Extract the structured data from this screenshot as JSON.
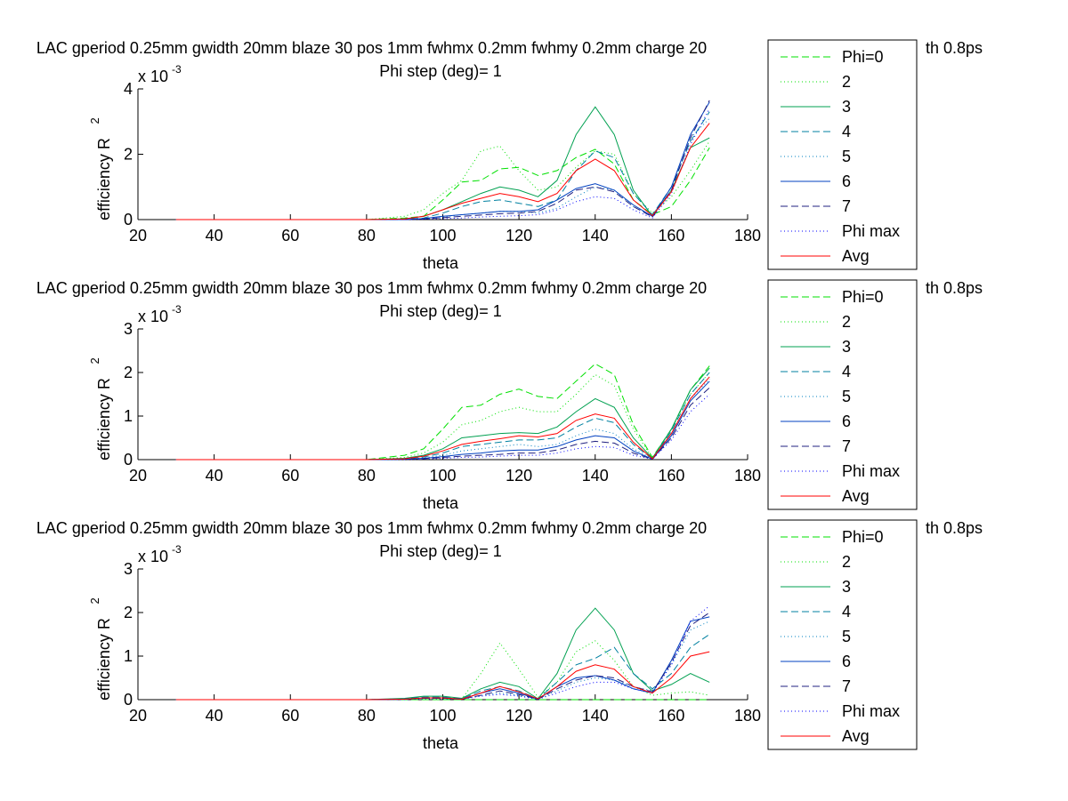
{
  "figure": {
    "background": "#ffffff"
  },
  "legend": {
    "entries": [
      {
        "label": "Phi=0",
        "color": "#00e000",
        "dash": "dashed"
      },
      {
        "label": "2",
        "color": "#00e000",
        "dash": "dotted"
      },
      {
        "label": "3",
        "color": "#00a050",
        "dash": "solid"
      },
      {
        "label": "4",
        "color": "#0080a0",
        "dash": "dashed"
      },
      {
        "label": "5",
        "color": "#0080c0",
        "dash": "dotted"
      },
      {
        "label": "6",
        "color": "#0040c0",
        "dash": "solid"
      },
      {
        "label": "7",
        "color": "#202080",
        "dash": "dashed"
      },
      {
        "label": "Phi max",
        "color": "#0000ff",
        "dash": "dotted"
      },
      {
        "label": "Avg",
        "color": "#ff0000",
        "dash": "solid"
      }
    ]
  },
  "chart_data": [
    {
      "type": "line",
      "title": "LAC gperiod 0.25mm gwidth 20mm blaze 30 pos 1mm fwhmx 0.2mm fwhmy 0.2mm charge 20",
      "title_tail": "th 0.8ps",
      "subtitle": "Phi step (deg)= 1",
      "xlabel": "theta",
      "ylabel": "efficiency R",
      "ylabel_sup": "2",
      "y_multiplier": "x 10",
      "y_multiplier_exp": "-3",
      "xlim": [
        20,
        180
      ],
      "ylim": [
        0,
        4
      ],
      "xticks": [
        20,
        40,
        60,
        80,
        100,
        120,
        140,
        160,
        180
      ],
      "yticks": [
        0,
        2,
        4
      ],
      "grid": false,
      "legend_position": "right",
      "x": [
        30,
        80,
        90,
        95,
        100,
        105,
        110,
        115,
        120,
        125,
        130,
        135,
        140,
        145,
        150,
        155,
        160,
        165,
        170
      ],
      "series": [
        {
          "name": "Phi=0",
          "values": [
            0,
            0,
            0.05,
            0.1,
            0.6,
            1.15,
            1.2,
            1.55,
            1.6,
            1.35,
            1.5,
            1.9,
            2.15,
            1.7,
            0.6,
            0.15,
            0.4,
            1.2,
            2.2
          ]
        },
        {
          "name": "2",
          "values": [
            0,
            0,
            0.1,
            0.3,
            0.8,
            1.2,
            2.1,
            2.25,
            1.5,
            0.9,
            1.0,
            1.6,
            2.1,
            2.0,
            0.8,
            0.2,
            0.7,
            1.5,
            2.4
          ]
        },
        {
          "name": "3",
          "values": [
            0,
            0,
            0.02,
            0.1,
            0.3,
            0.55,
            0.8,
            1.0,
            0.9,
            0.7,
            1.2,
            2.6,
            3.45,
            2.6,
            0.9,
            0.1,
            0.9,
            2.2,
            2.5
          ]
        },
        {
          "name": "4",
          "values": [
            0,
            0,
            0.01,
            0.05,
            0.2,
            0.4,
            0.55,
            0.6,
            0.5,
            0.4,
            0.6,
            1.5,
            2.1,
            1.9,
            0.8,
            0.15,
            1.0,
            2.4,
            3.3
          ]
        },
        {
          "name": "5",
          "values": [
            0,
            0,
            0,
            0.02,
            0.08,
            0.15,
            0.2,
            0.25,
            0.25,
            0.2,
            0.35,
            0.7,
            1.0,
            0.9,
            0.4,
            0.1,
            0.9,
            2.5,
            3.1
          ]
        },
        {
          "name": "6",
          "values": [
            0,
            0,
            0,
            0.03,
            0.1,
            0.15,
            0.2,
            0.25,
            0.25,
            0.3,
            0.6,
            0.95,
            1.1,
            0.9,
            0.45,
            0.1,
            1.0,
            2.6,
            3.6
          ]
        },
        {
          "name": "7",
          "values": [
            0,
            0,
            0,
            0.02,
            0.06,
            0.1,
            0.14,
            0.18,
            0.2,
            0.25,
            0.5,
            0.9,
            1.0,
            0.85,
            0.4,
            0.08,
            0.9,
            2.5,
            3.65
          ]
        },
        {
          "name": "Phi max",
          "values": [
            0,
            0,
            0,
            0.01,
            0.03,
            0.05,
            0.08,
            0.1,
            0.12,
            0.15,
            0.3,
            0.55,
            0.7,
            0.65,
            0.3,
            0.05,
            0.8,
            2.3,
            3.4
          ]
        },
        {
          "name": "Avg",
          "values": [
            0,
            0,
            0.02,
            0.1,
            0.3,
            0.5,
            0.65,
            0.8,
            0.7,
            0.55,
            0.8,
            1.5,
            1.85,
            1.5,
            0.6,
            0.12,
            0.85,
            2.2,
            2.95
          ]
        }
      ]
    },
    {
      "type": "line",
      "title": "LAC gperiod 0.25mm gwidth 20mm blaze 30 pos 1mm fwhmx 0.2mm fwhmy 0.2mm charge 20",
      "title_tail": "th 0.8ps",
      "subtitle": "Phi step (deg)= 1",
      "xlabel": "theta",
      "ylabel": "efficiency R",
      "ylabel_sup": "2",
      "y_multiplier": "x 10",
      "y_multiplier_exp": "-3",
      "xlim": [
        20,
        180
      ],
      "ylim": [
        0,
        3
      ],
      "xticks": [
        20,
        40,
        60,
        80,
        100,
        120,
        140,
        160,
        180
      ],
      "yticks": [
        0,
        1,
        2,
        3
      ],
      "grid": false,
      "legend_position": "right",
      "x": [
        30,
        80,
        90,
        95,
        100,
        105,
        110,
        115,
        120,
        125,
        130,
        135,
        140,
        145,
        150,
        155,
        160,
        165,
        170
      ],
      "series": [
        {
          "name": "Phi=0",
          "values": [
            0,
            0,
            0.1,
            0.25,
            0.7,
            1.2,
            1.25,
            1.5,
            1.62,
            1.45,
            1.4,
            1.8,
            2.2,
            1.95,
            0.8,
            0.05,
            0.7,
            1.6,
            2.15
          ]
        },
        {
          "name": "2",
          "values": [
            0,
            0,
            0.05,
            0.15,
            0.4,
            0.8,
            0.9,
            1.1,
            1.2,
            1.1,
            1.1,
            1.5,
            1.95,
            1.7,
            0.7,
            0.04,
            0.7,
            1.5,
            2.0
          ]
        },
        {
          "name": "3",
          "values": [
            0,
            0,
            0.03,
            0.1,
            0.25,
            0.5,
            0.55,
            0.6,
            0.62,
            0.6,
            0.75,
            1.1,
            1.4,
            1.2,
            0.5,
            0.03,
            0.7,
            1.6,
            2.1
          ]
        },
        {
          "name": "4",
          "values": [
            0,
            0,
            0.02,
            0.06,
            0.15,
            0.3,
            0.35,
            0.4,
            0.45,
            0.45,
            0.5,
            0.75,
            0.95,
            0.85,
            0.35,
            0.02,
            0.65,
            1.5,
            2.0
          ]
        },
        {
          "name": "5",
          "values": [
            0,
            0,
            0.01,
            0.04,
            0.1,
            0.2,
            0.25,
            0.3,
            0.35,
            0.3,
            0.35,
            0.55,
            0.7,
            0.6,
            0.25,
            0.02,
            0.6,
            1.4,
            1.85
          ]
        },
        {
          "name": "6",
          "values": [
            0,
            0,
            0.01,
            0.03,
            0.07,
            0.12,
            0.15,
            0.2,
            0.22,
            0.22,
            0.3,
            0.45,
            0.55,
            0.5,
            0.2,
            0.01,
            0.55,
            1.35,
            1.8
          ]
        },
        {
          "name": "7",
          "values": [
            0,
            0,
            0.01,
            0.02,
            0.05,
            0.08,
            0.1,
            0.12,
            0.15,
            0.15,
            0.22,
            0.35,
            0.42,
            0.38,
            0.15,
            0.01,
            0.5,
            1.25,
            1.65
          ]
        },
        {
          "name": "Phi max",
          "values": [
            0,
            0,
            0,
            0.01,
            0.03,
            0.05,
            0.06,
            0.08,
            0.1,
            0.1,
            0.15,
            0.25,
            0.3,
            0.28,
            0.1,
            0.01,
            0.45,
            1.1,
            1.5
          ]
        },
        {
          "name": "Avg",
          "values": [
            0,
            0,
            0.02,
            0.08,
            0.2,
            0.35,
            0.42,
            0.48,
            0.55,
            0.52,
            0.6,
            0.9,
            1.05,
            0.95,
            0.4,
            0.02,
            0.6,
            1.4,
            1.9
          ]
        }
      ]
    },
    {
      "type": "line",
      "title": "LAC gperiod 0.25mm gwidth 20mm blaze 30 pos 1mm fwhmx 0.2mm fwhmy 0.2mm charge 20",
      "title_tail": "th 0.8ps",
      "subtitle": "Phi step (deg)= 1",
      "xlabel": "theta",
      "ylabel": "efficiency R",
      "ylabel_sup": "2",
      "y_multiplier": "x 10",
      "y_multiplier_exp": "-3",
      "xlim": [
        20,
        180
      ],
      "ylim": [
        0,
        3
      ],
      "xticks": [
        20,
        40,
        60,
        80,
        100,
        120,
        140,
        160,
        180
      ],
      "yticks": [
        0,
        1,
        2,
        3
      ],
      "grid": false,
      "legend_position": "right",
      "x": [
        30,
        80,
        90,
        95,
        100,
        105,
        110,
        115,
        120,
        125,
        130,
        135,
        140,
        145,
        150,
        155,
        160,
        165,
        170
      ],
      "series": [
        {
          "name": "Phi=0",
          "values": [
            0,
            0,
            0,
            0,
            0,
            0,
            0,
            0,
            0,
            0,
            0,
            0,
            0,
            0,
            0,
            0,
            0,
            0,
            0
          ]
        },
        {
          "name": "2",
          "values": [
            0,
            0,
            0.02,
            0.05,
            0.05,
            0.02,
            0.6,
            1.3,
            0.7,
            0.05,
            0.4,
            1.1,
            1.35,
            0.9,
            0.3,
            0.1,
            0.15,
            0.18,
            0.1
          ]
        },
        {
          "name": "3",
          "values": [
            0,
            0,
            0.03,
            0.08,
            0.08,
            0.03,
            0.25,
            0.4,
            0.3,
            0.02,
            0.6,
            1.6,
            2.1,
            1.6,
            0.6,
            0.2,
            0.35,
            0.6,
            0.4
          ]
        },
        {
          "name": "4",
          "values": [
            0,
            0,
            0.02,
            0.06,
            0.06,
            0.02,
            0.2,
            0.3,
            0.2,
            0.02,
            0.4,
            0.8,
            0.95,
            1.2,
            0.6,
            0.25,
            0.6,
            1.2,
            1.5
          ]
        },
        {
          "name": "5",
          "values": [
            0,
            0,
            0.01,
            0.03,
            0.03,
            0.01,
            0.1,
            0.15,
            0.1,
            0.01,
            0.2,
            0.4,
            0.5,
            0.45,
            0.3,
            0.2,
            0.8,
            1.6,
            1.8
          ]
        },
        {
          "name": "6",
          "values": [
            0,
            0,
            0.01,
            0.04,
            0.04,
            0.01,
            0.15,
            0.25,
            0.15,
            0.01,
            0.3,
            0.5,
            0.55,
            0.45,
            0.25,
            0.15,
            0.9,
            1.8,
            1.9
          ]
        },
        {
          "name": "7",
          "values": [
            0,
            0,
            0.01,
            0.03,
            0.03,
            0.01,
            0.1,
            0.2,
            0.12,
            0.01,
            0.25,
            0.45,
            0.55,
            0.5,
            0.3,
            0.18,
            0.85,
            1.7,
            2.0
          ]
        },
        {
          "name": "Phi max",
          "values": [
            0,
            0,
            0,
            0.02,
            0.02,
            0.01,
            0.08,
            0.12,
            0.08,
            0.01,
            0.15,
            0.3,
            0.4,
            0.4,
            0.25,
            0.15,
            0.8,
            1.8,
            2.15
          ]
        },
        {
          "name": "Avg",
          "values": [
            0,
            0,
            0.01,
            0.04,
            0.04,
            0.01,
            0.15,
            0.3,
            0.18,
            0.02,
            0.3,
            0.65,
            0.8,
            0.7,
            0.3,
            0.15,
            0.5,
            1.0,
            1.1
          ]
        }
      ]
    }
  ]
}
